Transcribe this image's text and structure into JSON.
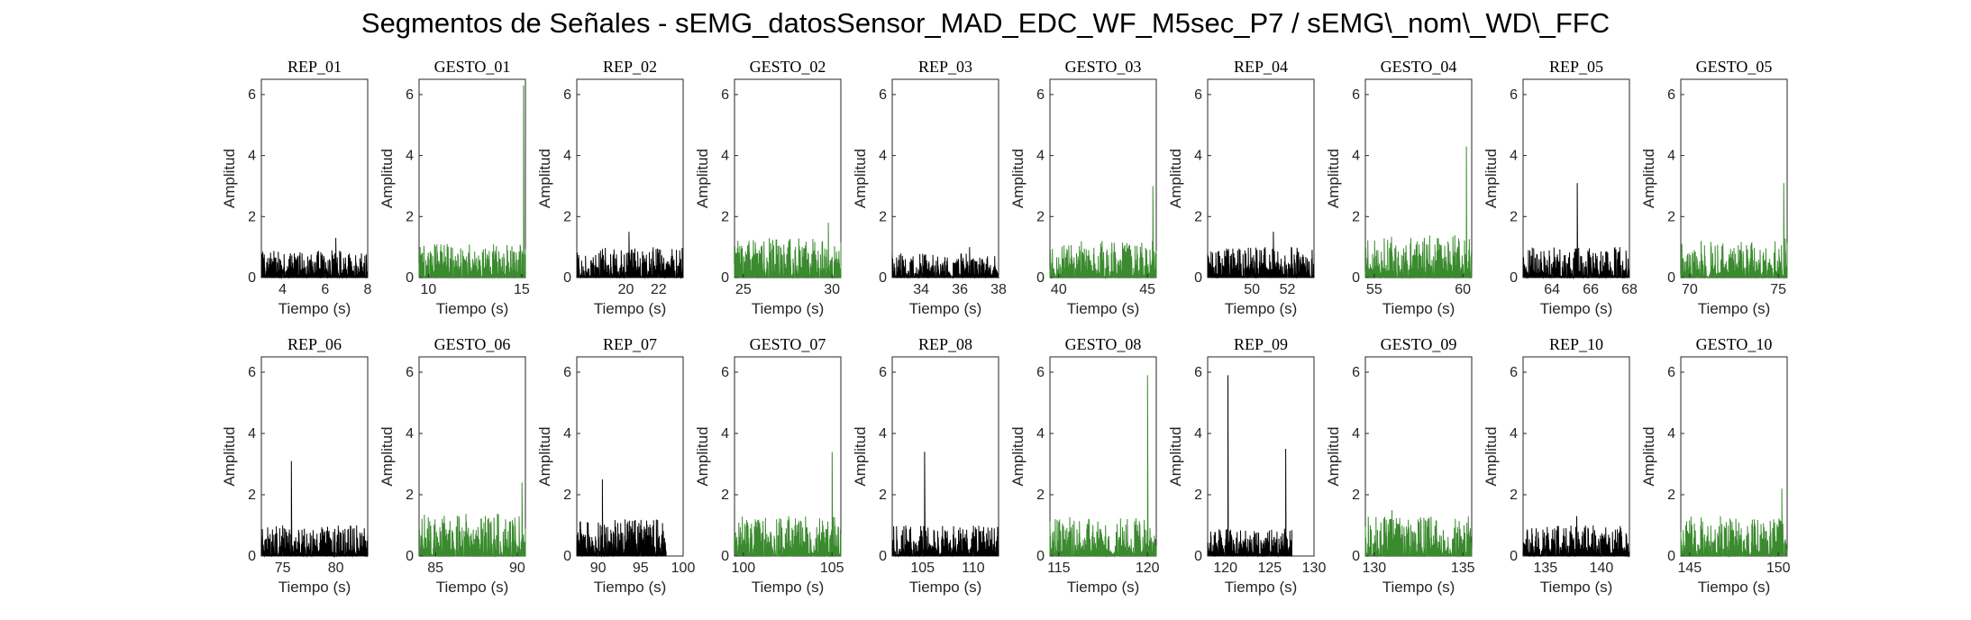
{
  "figure": {
    "title": "Segmentos de Señales - sEMG_datosSensor_MAD_EDC_WF_M5sec_P7 / sEMG\\_nom\\_WD\\_FFC"
  },
  "colors": {
    "rep": "#000000",
    "gesto": "#3a8a2e",
    "axis": "#262626"
  },
  "chart_data": [
    {
      "type": "line",
      "title": "REP_01",
      "xlabel": "Tiempo (s)",
      "ylabel": "Amplitud",
      "xlim": [
        3,
        8
      ],
      "ylim": [
        0,
        6.5
      ],
      "xticks": [
        4,
        6,
        8
      ],
      "yticks": [
        0,
        2,
        4,
        6
      ],
      "x_range": [
        3,
        8
      ],
      "peaks": [
        {
          "x": 6.5,
          "y": 1.3
        }
      ],
      "base_amplitude": 0.9,
      "series_name": "rep",
      "grid": false
    },
    {
      "type": "line",
      "title": "GESTO_01",
      "xlabel": "Tiempo (s)",
      "ylabel": "Amplitud",
      "xlim": [
        9.5,
        15.2
      ],
      "ylim": [
        0,
        6.5
      ],
      "xticks": [
        10,
        15
      ],
      "yticks": [
        0,
        2,
        4,
        6
      ],
      "x_range": [
        9.5,
        15.2
      ],
      "peaks": [
        {
          "x": 15.1,
          "y": 6.3
        }
      ],
      "base_amplitude": 1.1,
      "series_name": "gesto",
      "grid": false
    },
    {
      "type": "line",
      "title": "REP_02",
      "xlabel": "Tiempo (s)",
      "ylabel": "Amplitud",
      "xlim": [
        17,
        23.5
      ],
      "ylim": [
        0,
        6.5
      ],
      "xticks": [
        20,
        22
      ],
      "yticks": [
        0,
        2,
        4,
        6
      ],
      "x_range": [
        17,
        23.5
      ],
      "peaks": [
        {
          "x": 20.2,
          "y": 1.5
        }
      ],
      "base_amplitude": 1.0,
      "series_name": "rep",
      "grid": false
    },
    {
      "type": "line",
      "title": "GESTO_02",
      "xlabel": "Tiempo (s)",
      "ylabel": "Amplitud",
      "xlim": [
        24.5,
        30.5
      ],
      "ylim": [
        0,
        6.5
      ],
      "xticks": [
        25,
        30
      ],
      "yticks": [
        0,
        2,
        4,
        6
      ],
      "x_range": [
        24.5,
        30.5
      ],
      "peaks": [
        {
          "x": 29.8,
          "y": 1.8
        }
      ],
      "base_amplitude": 1.3,
      "series_name": "gesto",
      "grid": false
    },
    {
      "type": "line",
      "title": "REP_03",
      "xlabel": "Tiempo (s)",
      "ylabel": "Amplitud",
      "xlim": [
        32.5,
        38
      ],
      "ylim": [
        0,
        6.5
      ],
      "xticks": [
        34,
        36,
        38
      ],
      "yticks": [
        0,
        2,
        4,
        6
      ],
      "x_range": [
        32.5,
        38
      ],
      "peaks": [
        {
          "x": 36.5,
          "y": 1.0
        }
      ],
      "base_amplitude": 0.8,
      "series_name": "rep",
      "grid": false
    },
    {
      "type": "line",
      "title": "GESTO_03",
      "xlabel": "Tiempo (s)",
      "ylabel": "Amplitud",
      "xlim": [
        39.5,
        45.5
      ],
      "ylim": [
        0,
        6.5
      ],
      "xticks": [
        40,
        45
      ],
      "yticks": [
        0,
        2,
        4,
        6
      ],
      "x_range": [
        39.5,
        45.5
      ],
      "peaks": [
        {
          "x": 45.3,
          "y": 3.0
        }
      ],
      "base_amplitude": 1.2,
      "series_name": "gesto",
      "grid": false
    },
    {
      "type": "line",
      "title": "REP_04",
      "xlabel": "Tiempo (s)",
      "ylabel": "Amplitud",
      "xlim": [
        47.5,
        53.5
      ],
      "ylim": [
        0,
        6.5
      ],
      "xticks": [
        50,
        52
      ],
      "yticks": [
        0,
        2,
        4,
        6
      ],
      "x_range": [
        47.5,
        53.5
      ],
      "peaks": [
        {
          "x": 51.2,
          "y": 1.5
        }
      ],
      "base_amplitude": 1.0,
      "series_name": "rep",
      "grid": false
    },
    {
      "type": "line",
      "title": "GESTO_04",
      "xlabel": "Tiempo (s)",
      "ylabel": "Amplitud",
      "xlim": [
        54.5,
        60.5
      ],
      "ylim": [
        0,
        6.5
      ],
      "xticks": [
        55,
        60
      ],
      "yticks": [
        0,
        2,
        4,
        6
      ],
      "x_range": [
        54.5,
        60.5
      ],
      "peaks": [
        {
          "x": 60.2,
          "y": 4.3
        }
      ],
      "base_amplitude": 1.4,
      "series_name": "gesto",
      "grid": false
    },
    {
      "type": "line",
      "title": "REP_05",
      "xlabel": "Tiempo (s)",
      "ylabel": "Amplitud",
      "xlim": [
        62.5,
        68
      ],
      "ylim": [
        0,
        6.5
      ],
      "xticks": [
        64,
        66,
        68
      ],
      "yticks": [
        0,
        2,
        4,
        6
      ],
      "x_range": [
        62.5,
        68
      ],
      "peaks": [
        {
          "x": 65.3,
          "y": 3.1
        }
      ],
      "base_amplitude": 1.0,
      "series_name": "rep",
      "grid": false
    },
    {
      "type": "line",
      "title": "GESTO_05",
      "xlabel": "Tiempo (s)",
      "ylabel": "Amplitud",
      "xlim": [
        69.5,
        75.5
      ],
      "ylim": [
        0,
        6.5
      ],
      "xticks": [
        70,
        75
      ],
      "yticks": [
        0,
        2,
        4,
        6
      ],
      "x_range": [
        69.5,
        75.5
      ],
      "peaks": [
        {
          "x": 75.3,
          "y": 3.1
        }
      ],
      "base_amplitude": 1.3,
      "series_name": "gesto",
      "grid": false
    },
    {
      "type": "line",
      "title": "REP_06",
      "xlabel": "Tiempo (s)",
      "ylabel": "Amplitud",
      "xlim": [
        73,
        83
      ],
      "ylim": [
        0,
        6.5
      ],
      "xticks": [
        75,
        80
      ],
      "yticks": [
        0,
        2,
        4,
        6
      ],
      "x_range": [
        73,
        83
      ],
      "peaks": [
        {
          "x": 75.8,
          "y": 3.1
        }
      ],
      "base_amplitude": 1.0,
      "series_name": "rep",
      "grid": false
    },
    {
      "type": "line",
      "title": "GESTO_06",
      "xlabel": "Tiempo (s)",
      "ylabel": "Amplitud",
      "xlim": [
        84,
        90.5
      ],
      "ylim": [
        0,
        6.5
      ],
      "xticks": [
        85,
        90
      ],
      "yticks": [
        0,
        2,
        4,
        6
      ],
      "x_range": [
        84,
        90.5
      ],
      "peaks": [
        {
          "x": 90.3,
          "y": 2.4
        }
      ],
      "base_amplitude": 1.4,
      "series_name": "gesto",
      "grid": false
    },
    {
      "type": "line",
      "title": "REP_07",
      "xlabel": "Tiempo (s)",
      "ylabel": "Amplitud",
      "xlim": [
        87.5,
        100
      ],
      "ylim": [
        0,
        6.5
      ],
      "xticks": [
        90,
        95,
        100
      ],
      "yticks": [
        0,
        2,
        4,
        6
      ],
      "x_range": [
        87.5,
        98
      ],
      "peaks": [
        {
          "x": 90.5,
          "y": 2.5
        }
      ],
      "base_amplitude": 1.2,
      "series_name": "rep",
      "grid": false
    },
    {
      "type": "line",
      "title": "GESTO_07",
      "xlabel": "Tiempo (s)",
      "ylabel": "Amplitud",
      "xlim": [
        99.5,
        105.5
      ],
      "ylim": [
        0,
        6.5
      ],
      "xticks": [
        100,
        105
      ],
      "yticks": [
        0,
        2,
        4,
        6
      ],
      "x_range": [
        99.5,
        105.5
      ],
      "peaks": [
        {
          "x": 105.0,
          "y": 3.4
        }
      ],
      "base_amplitude": 1.3,
      "series_name": "gesto",
      "grid": false
    },
    {
      "type": "line",
      "title": "REP_08",
      "xlabel": "Tiempo (s)",
      "ylabel": "Amplitud",
      "xlim": [
        102,
        112.5
      ],
      "ylim": [
        0,
        6.5
      ],
      "xticks": [
        105,
        110
      ],
      "yticks": [
        0,
        2,
        4,
        6
      ],
      "x_range": [
        102,
        112.5
      ],
      "peaks": [
        {
          "x": 105.2,
          "y": 3.4
        }
      ],
      "base_amplitude": 1.0,
      "series_name": "rep",
      "grid": false
    },
    {
      "type": "line",
      "title": "GESTO_08",
      "xlabel": "Tiempo (s)",
      "ylabel": "Amplitud",
      "xlim": [
        114.5,
        120.5
      ],
      "ylim": [
        0,
        6.5
      ],
      "xticks": [
        115,
        120
      ],
      "yticks": [
        0,
        2,
        4,
        6
      ],
      "x_range": [
        114.5,
        120.5
      ],
      "peaks": [
        {
          "x": 120.0,
          "y": 5.9
        }
      ],
      "base_amplitude": 1.3,
      "series_name": "gesto",
      "grid": false
    },
    {
      "type": "line",
      "title": "REP_09",
      "xlabel": "Tiempo (s)",
      "ylabel": "Amplitud",
      "xlim": [
        118,
        130
      ],
      "ylim": [
        0,
        6.5
      ],
      "xticks": [
        120,
        125,
        130
      ],
      "yticks": [
        0,
        2,
        4,
        6
      ],
      "x_range": [
        118,
        127.5
      ],
      "peaks": [
        {
          "x": 120.3,
          "y": 5.9
        },
        {
          "x": 126.8,
          "y": 3.5
        }
      ],
      "base_amplitude": 0.9,
      "series_name": "rep",
      "grid": false
    },
    {
      "type": "line",
      "title": "GESTO_09",
      "xlabel": "Tiempo (s)",
      "ylabel": "Amplitud",
      "xlim": [
        129.5,
        135.5
      ],
      "ylim": [
        0,
        6.5
      ],
      "xticks": [
        130,
        135
      ],
      "yticks": [
        0,
        2,
        4,
        6
      ],
      "x_range": [
        129.5,
        135.5
      ],
      "peaks": [
        {
          "x": 131.0,
          "y": 1.5
        }
      ],
      "base_amplitude": 1.3,
      "series_name": "gesto",
      "grid": false
    },
    {
      "type": "line",
      "title": "REP_10",
      "xlabel": "Tiempo (s)",
      "ylabel": "Amplitud",
      "xlim": [
        133,
        142.5
      ],
      "ylim": [
        0,
        6.5
      ],
      "xticks": [
        135,
        140
      ],
      "yticks": [
        0,
        2,
        4,
        6
      ],
      "x_range": [
        133,
        142.5
      ],
      "peaks": [
        {
          "x": 137.8,
          "y": 1.3
        }
      ],
      "base_amplitude": 1.0,
      "series_name": "rep",
      "grid": false
    },
    {
      "type": "line",
      "title": "GESTO_10",
      "xlabel": "Tiempo (s)",
      "ylabel": "Amplitud",
      "xlim": [
        144.5,
        150.5
      ],
      "ylim": [
        0,
        6.5
      ],
      "xticks": [
        145,
        150
      ],
      "yticks": [
        0,
        2,
        4,
        6
      ],
      "x_range": [
        144.5,
        150.5
      ],
      "peaks": [
        {
          "x": 150.2,
          "y": 2.2
        }
      ],
      "base_amplitude": 1.3,
      "series_name": "gesto",
      "grid": false
    }
  ]
}
